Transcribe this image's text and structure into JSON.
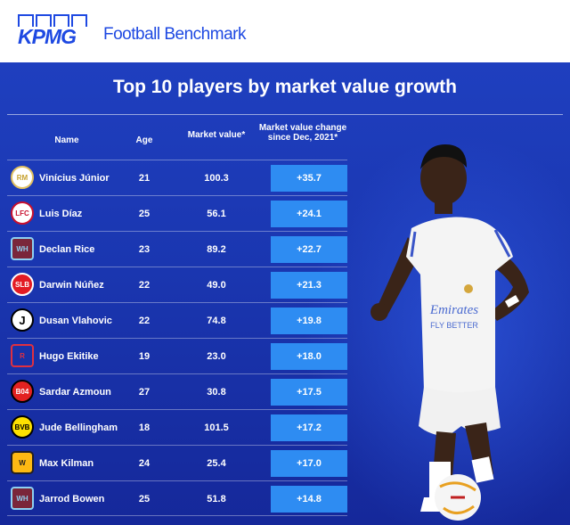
{
  "brand": {
    "logo_text": "KPMG",
    "product": "Football Benchmark"
  },
  "title": "Top 10 players by market value growth",
  "columns": {
    "name": "Name",
    "age": "Age",
    "market_value": "Market value*",
    "change": "Market value change since Dec, 2021*"
  },
  "rows": [
    {
      "name": "Vinícius Júnior",
      "age": "21",
      "market_value": "100.3",
      "change": "+35.7",
      "club_icon": "real-madrid-crest"
    },
    {
      "name": "Luis Díaz",
      "age": "25",
      "market_value": "56.1",
      "change": "+24.1",
      "club_icon": "liverpool-crest"
    },
    {
      "name": "Declan Rice",
      "age": "23",
      "market_value": "89.2",
      "change": "+22.7",
      "club_icon": "west-ham-crest"
    },
    {
      "name": "Darwin Núñez",
      "age": "22",
      "market_value": "49.0",
      "change": "+21.3",
      "club_icon": "benfica-crest"
    },
    {
      "name": "Dusan Vlahovic",
      "age": "22",
      "market_value": "74.8",
      "change": "+19.8",
      "club_icon": "juventus-crest"
    },
    {
      "name": "Hugo Ekitike",
      "age": "19",
      "market_value": "23.0",
      "change": "+18.0",
      "club_icon": "reims-crest"
    },
    {
      "name": "Sardar Azmoun",
      "age": "27",
      "market_value": "30.8",
      "change": "+17.5",
      "club_icon": "leverkusen-crest"
    },
    {
      "name": "Jude Bellingham",
      "age": "18",
      "market_value": "101.5",
      "change": "+17.2",
      "club_icon": "dortmund-crest"
    },
    {
      "name": "Max Kilman",
      "age": "24",
      "market_value": "25.4",
      "change": "+17.0",
      "club_icon": "wolves-crest"
    },
    {
      "name": "Jarrod Bowen",
      "age": "25",
      "market_value": "51.8",
      "change": "+14.8",
      "club_icon": "west-ham-crest"
    }
  ],
  "player_jersey": {
    "line1": "Emirates",
    "line2": "FLY BETTER"
  },
  "colors": {
    "brand_blue": "#1e49e2",
    "panel_blue": "#1a36b0",
    "highlight": "#2e8cf2"
  }
}
